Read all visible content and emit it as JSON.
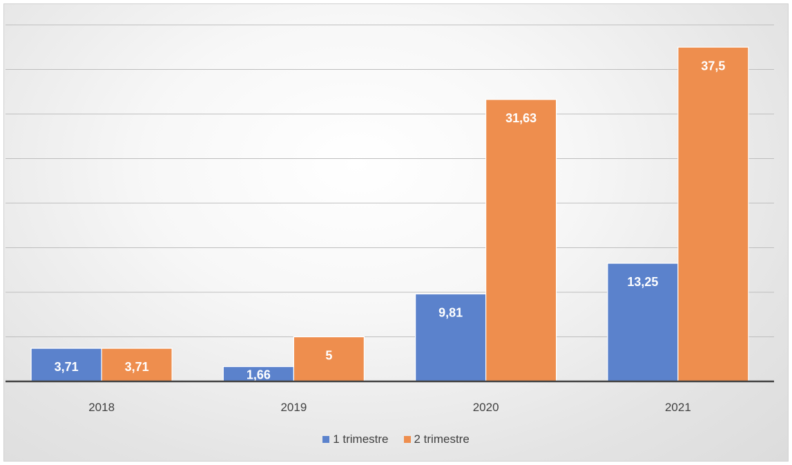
{
  "chart_data": {
    "type": "bar",
    "categories": [
      "2018",
      "2019",
      "2020",
      "2021"
    ],
    "series": [
      {
        "name": "1 trimestre",
        "values": [
          3.71,
          1.66,
          9.81,
          13.25
        ],
        "labels": [
          "3,71",
          "1,66",
          "9,81",
          "13,25"
        ],
        "color": "#5B82CC"
      },
      {
        "name": "2 trimestre",
        "values": [
          3.71,
          5,
          31.63,
          37.5
        ],
        "labels": [
          "3,71",
          "5",
          "31,63",
          "37,5"
        ],
        "color": "#EE8E4E"
      }
    ],
    "ylim": [
      0,
      40
    ],
    "ytick_step": 5,
    "grid": true,
    "yaxis_labels_shown": false,
    "legend_position": "bottom"
  }
}
